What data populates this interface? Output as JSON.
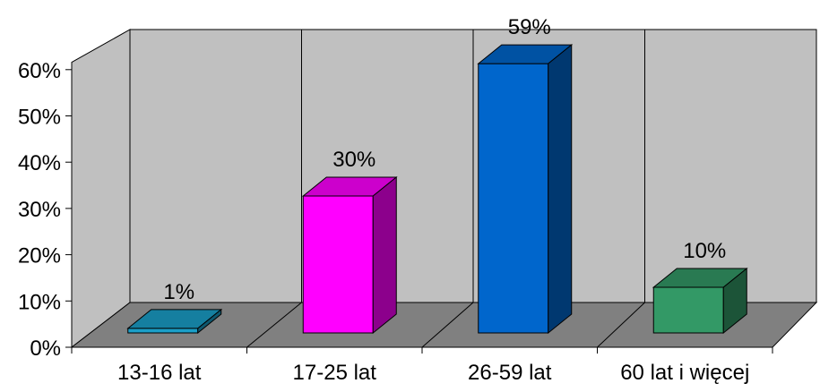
{
  "chart_data": {
    "type": "bar",
    "style": "3d-column",
    "categories": [
      "13-16 lat",
      "17-25 lat",
      "26-59 lat",
      "60 lat i więcej"
    ],
    "values": [
      1,
      30,
      59,
      10
    ],
    "value_labels": [
      "1%",
      "30%",
      "59%",
      "10%"
    ],
    "colors": [
      "#1a9fc8",
      "#ff00ff",
      "#0066cc",
      "#339966"
    ],
    "y_ticks": [
      "0%",
      "10%",
      "20%",
      "30%",
      "40%",
      "50%",
      "60%"
    ],
    "ylim": [
      0,
      60
    ],
    "grid": "vertical category separators",
    "legend": "none",
    "title": "",
    "xlabel": "",
    "ylabel": ""
  }
}
